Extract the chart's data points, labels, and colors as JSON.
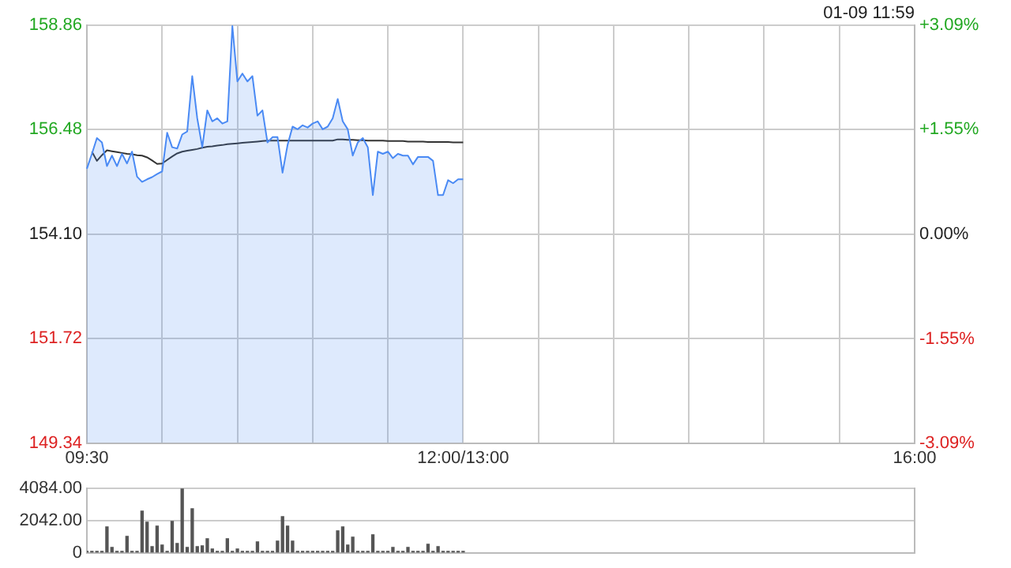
{
  "chart_data": [
    {
      "type": "area",
      "categories": [
        "09:30",
        null,
        null,
        null,
        null,
        null,
        null,
        null,
        null,
        null,
        null,
        null,
        null,
        null,
        null,
        null,
        null,
        null,
        null,
        null,
        null,
        null,
        null,
        null,
        null,
        null,
        null,
        null,
        null,
        null,
        null,
        null,
        null,
        null,
        null,
        null,
        null,
        null,
        null,
        null,
        null,
        null,
        null,
        null,
        null,
        null,
        null,
        null,
        null,
        null,
        null,
        null,
        null,
        null,
        null,
        null,
        null,
        null,
        null,
        null,
        null,
        null,
        null,
        null,
        null,
        null,
        null,
        null,
        null,
        null,
        null,
        null,
        null,
        null,
        null,
        "12:00/13:00",
        null,
        null,
        null,
        null,
        null,
        null,
        null,
        null,
        null,
        null,
        null,
        null,
        null,
        null,
        null,
        null,
        null,
        null,
        null,
        null,
        null,
        null,
        null,
        null,
        null,
        null,
        null,
        null,
        null,
        null,
        null,
        null,
        null,
        null,
        null,
        null,
        null,
        null,
        null,
        null,
        null,
        null,
        null,
        null,
        null,
        null,
        null,
        null,
        null,
        null,
        null,
        null,
        null,
        null,
        null,
        null,
        null,
        null,
        null,
        null,
        null,
        null,
        null,
        null,
        null,
        null,
        null,
        null,
        null,
        null,
        null,
        null,
        null,
        null,
        null,
        null,
        null,
        null,
        null,
        null,
        null,
        null,
        null,
        null,
        null,
        null,
        null,
        null,
        null,
        "16:00"
      ],
      "series": [
        {
          "color": "#4a8af4",
          "values": [
            155.59,
            155.93,
            156.29,
            156.19,
            155.65,
            155.89,
            155.65,
            155.93,
            155.71,
            155.98,
            155.41,
            155.29,
            155.35,
            155.4,
            155.47,
            155.53,
            156.41,
            156.08,
            156.05,
            156.37,
            156.44,
            157.7,
            156.74,
            156.08,
            156.92,
            156.67,
            156.74,
            156.62,
            156.67,
            158.84,
            157.58,
            157.76,
            157.58,
            157.7,
            156.8,
            156.92,
            156.19,
            156.31,
            156.31,
            155.5,
            156.13,
            156.55,
            156.49,
            156.58,
            156.53,
            156.62,
            156.67,
            156.49,
            156.55,
            156.74,
            157.18,
            156.67,
            156.49,
            155.89,
            156.19,
            156.29,
            156.08,
            154.99,
            155.98,
            155.93,
            155.98,
            155.83,
            155.93,
            155.89,
            155.89,
            155.69,
            155.86,
            155.86,
            155.86,
            155.77,
            154.99,
            154.99,
            155.33,
            155.26,
            155.35,
            155.35,
            null,
            null,
            null,
            null,
            null,
            null,
            null,
            null,
            null,
            null,
            null,
            null,
            null,
            null,
            null,
            null,
            null,
            null,
            null,
            null,
            null,
            null,
            null,
            null,
            null,
            null,
            null,
            null,
            null,
            null,
            null,
            null,
            null,
            null,
            null,
            null,
            null,
            null,
            null,
            null,
            null,
            null,
            null,
            null,
            null,
            null,
            null,
            null,
            null,
            null,
            null,
            null,
            null,
            null,
            null,
            null,
            null,
            null,
            null,
            null,
            null,
            null,
            null,
            null,
            null,
            null,
            null,
            null,
            null,
            null,
            null,
            null,
            null,
            null,
            null,
            null,
            null,
            null,
            null,
            null,
            null,
            null,
            null,
            null,
            null,
            null,
            null,
            null,
            null,
            null
          ]
        },
        {
          "type": "line",
          "color": "#333333",
          "values": [
            null,
            155.98,
            155.77,
            155.9,
            156.01,
            155.99,
            155.97,
            155.95,
            155.93,
            155.92,
            155.9,
            155.89,
            155.85,
            155.78,
            155.7,
            155.71,
            155.79,
            155.87,
            155.94,
            155.98,
            156.0,
            156.02,
            156.04,
            156.07,
            156.09,
            156.1,
            156.12,
            156.13,
            156.15,
            156.16,
            156.17,
            156.18,
            156.19,
            156.2,
            156.21,
            156.22,
            156.23,
            156.23,
            156.23,
            156.23,
            156.23,
            156.23,
            156.23,
            156.23,
            156.23,
            156.23,
            156.23,
            156.23,
            156.23,
            156.23,
            156.26,
            156.26,
            156.25,
            156.25,
            156.24,
            156.24,
            156.23,
            156.23,
            156.23,
            156.23,
            156.22,
            156.22,
            156.22,
            156.22,
            156.21,
            156.21,
            156.21,
            156.21,
            156.2,
            156.2,
            156.2,
            156.2,
            156.2,
            156.19,
            156.19,
            156.19,
            null,
            null,
            null,
            null,
            null,
            null,
            null,
            null,
            null,
            null,
            null,
            null,
            null,
            null,
            null,
            null,
            null,
            null,
            null,
            null,
            null,
            null,
            null,
            null,
            null,
            null,
            null,
            null,
            null,
            null,
            null,
            null,
            null,
            null,
            null,
            null,
            null,
            null,
            null,
            null,
            null,
            null,
            null,
            null,
            null,
            null,
            null,
            null,
            null,
            null,
            null,
            null,
            null,
            null,
            null,
            null,
            null,
            null,
            null,
            null,
            null,
            null,
            null,
            null,
            null,
            null,
            null,
            null,
            null,
            null,
            null,
            null,
            null,
            null,
            null,
            null,
            null,
            null,
            null,
            null,
            null,
            null,
            null,
            null,
            null,
            null,
            null,
            null,
            null,
            null
          ]
        }
      ],
      "ylim": [
        149.34,
        158.86
      ],
      "yticks": [
        149.34,
        151.72,
        {
          "value": 154.1,
          "label": "154.10"
        },
        156.48,
        158.86
      ],
      "y2lim": [
        -3.09,
        3.09
      ],
      "y2ticks": [
        {
          "value": -3.09,
          "label": "-3.09%"
        },
        {
          "value": -1.55,
          "label": "-1.55%"
        },
        {
          "value": 0,
          "label": "0.00%"
        },
        {
          "value": 1.55,
          "label": "+1.55%"
        },
        {
          "value": 3.09,
          "label": "+3.09%"
        }
      ],
      "grid": true,
      "annotations": [
        "01-09 11:59"
      ]
    },
    {
      "type": "bar",
      "categories": [
        null,
        null,
        null,
        null,
        null,
        null,
        null,
        null,
        null,
        null,
        null,
        null,
        null,
        null,
        null,
        null,
        null,
        null,
        null,
        null,
        null,
        null,
        null,
        null,
        null,
        null,
        null,
        null,
        null,
        null,
        null,
        null,
        null,
        null,
        null,
        null,
        null,
        null,
        null,
        null,
        null,
        null,
        null,
        null,
        null,
        null,
        null,
        null,
        null,
        null,
        null,
        null,
        null,
        null,
        null,
        null,
        null,
        null,
        null,
        null,
        null,
        null,
        null,
        null,
        null,
        null,
        null,
        null,
        null,
        null,
        null,
        null,
        null,
        null,
        null,
        null,
        null,
        null,
        null,
        null,
        null,
        null,
        null,
        null,
        null,
        null,
        null,
        null,
        null,
        null,
        null,
        null,
        null,
        null,
        null,
        null,
        null,
        null,
        null,
        null,
        null,
        null,
        null,
        null,
        null,
        null,
        null,
        null,
        null,
        null,
        null,
        null,
        null,
        null,
        null,
        null,
        null,
        null,
        null,
        null,
        null,
        null,
        null,
        null,
        null,
        null,
        null,
        null,
        null,
        null,
        null,
        null,
        null,
        null,
        null,
        null,
        null,
        null,
        null,
        null,
        null,
        null,
        null,
        null,
        null,
        null,
        null,
        null,
        null,
        null,
        null,
        null,
        null,
        null,
        null,
        null,
        null,
        null,
        null,
        null,
        null,
        null,
        null,
        null,
        null,
        null
      ],
      "values": [
        100,
        100,
        100,
        100,
        1650,
        350,
        100,
        100,
        1050,
        100,
        100,
        2650,
        1950,
        400,
        1700,
        500,
        100,
        2000,
        600,
        4084,
        350,
        2800,
        400,
        450,
        900,
        250,
        100,
        100,
        900,
        100,
        250,
        100,
        100,
        100,
        700,
        100,
        100,
        100,
        750,
        2300,
        1700,
        750,
        100,
        100,
        100,
        100,
        100,
        100,
        100,
        100,
        1400,
        1650,
        500,
        1000,
        100,
        100,
        100,
        1150,
        100,
        100,
        100,
        350,
        100,
        100,
        350,
        100,
        100,
        100,
        550,
        100,
        400,
        100,
        100,
        100,
        100,
        100,
        null,
        null,
        null,
        null,
        null,
        null,
        null,
        null,
        null,
        null,
        null,
        null,
        null,
        null,
        null,
        null,
        null,
        null,
        null,
        null,
        null,
        null,
        null,
        null,
        null,
        null,
        null,
        null,
        null,
        null,
        null,
        null,
        null,
        null,
        null,
        null,
        null,
        null,
        null,
        null,
        null,
        null,
        null,
        null,
        null,
        null,
        null,
        null,
        null,
        null,
        null,
        null,
        null,
        null,
        null,
        null,
        null,
        null,
        null,
        null,
        null,
        null,
        null,
        null,
        null,
        null,
        null,
        null,
        null,
        null,
        null,
        null,
        null,
        null,
        null,
        null,
        null,
        null,
        null,
        null,
        null,
        null,
        null,
        null,
        null,
        null,
        null,
        null,
        null,
        null
      ],
      "color": "#555555",
      "ylim": [
        0,
        4084
      ],
      "yticks": [
        0,
        {
          "value": 2042,
          "label": "2042.00"
        },
        {
          "value": 4084,
          "label": "4084.00"
        }
      ],
      "grid": "y",
      "tick_labels": "y"
    }
  ]
}
